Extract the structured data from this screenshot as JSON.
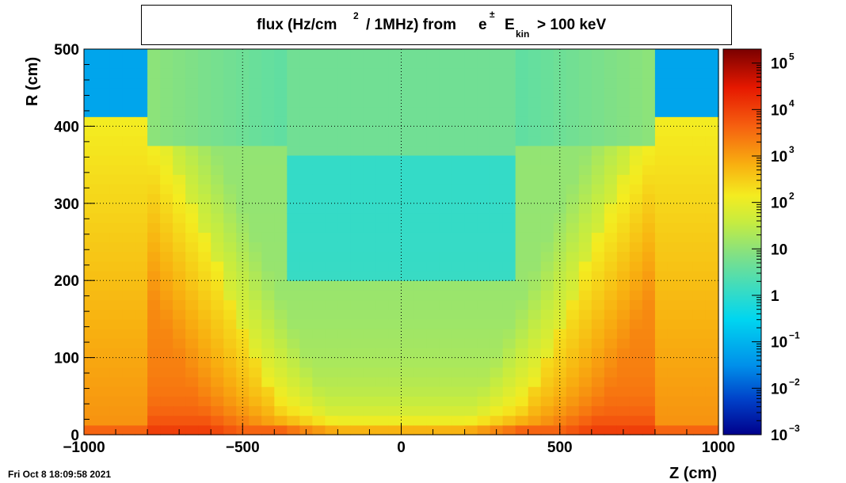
{
  "title": {
    "part1": "flux (Hz/cm",
    "sup1": "2",
    "part2": "/ 1MHz) from",
    "particle": "e",
    "charge": "±",
    "ekin": "E",
    "ekin_sub": "kin",
    "part3": "> 100 keV"
  },
  "timestamp": "Fri Oct  8 18:09:58 2021",
  "colors": {
    "palette": [
      "#00008b",
      "#0040c8",
      "#0090ea",
      "#00d6f0",
      "#3ddcc0",
      "#7ce08a",
      "#c6ec40",
      "#f4ec20",
      "#f8b010",
      "#f66010",
      "#e61800",
      "#7a0000"
    ]
  },
  "chart_data": {
    "type": "heatmap",
    "title": "flux (Hz/cm2 / 1MHz) from e± Ekin > 100 keV",
    "xlabel": "Z (cm)",
    "ylabel": "R (cm)",
    "xlim": [
      -1000,
      1000
    ],
    "ylim": [
      0,
      500
    ],
    "zscale": "log",
    "zlim": [
      0.001,
      200000
    ],
    "grid": true,
    "x_ticks": [
      "−1000",
      "−500",
      "0",
      "500",
      "1000"
    ],
    "x_tick_values": [
      -1000,
      -500,
      0,
      500,
      1000
    ],
    "y_ticks": [
      "0",
      "100",
      "200",
      "300",
      "400",
      "500"
    ],
    "y_tick_values": [
      0,
      100,
      200,
      300,
      400,
      500
    ],
    "z_ticks": [
      {
        "base": "10",
        "exp": "5",
        "value": 100000
      },
      {
        "base": "10",
        "exp": "4",
        "value": 10000
      },
      {
        "base": "10",
        "exp": "3",
        "value": 1000
      },
      {
        "base": "10",
        "exp": "2",
        "value": 100
      },
      {
        "base": "10",
        "exp": "",
        "value": 10
      },
      {
        "base": "1",
        "exp": "",
        "value": 1
      },
      {
        "base": "10",
        "exp": "−1",
        "value": 0.1
      },
      {
        "base": "10",
        "exp": "−2",
        "value": 0.01
      },
      {
        "base": "10",
        "exp": "−3",
        "value": 0.001
      }
    ],
    "approx_field_log10": {
      "note_regions": [
        {
          "region": "beamline R<20",
          "log10_flux": 3.3
        },
        {
          "region": "forward corners |Z|>800, R>420",
          "log10_flux": -1.3
        },
        {
          "region": "central barrel |Z|<350, 200<R<360",
          "log10_flux": -0.2
        },
        {
          "region": "barrel outer R>360",
          "log10_flux": 0.6
        },
        {
          "region": "inner tracker |Z|<400, R<100",
          "log10_flux": 1.8
        }
      ]
    }
  }
}
